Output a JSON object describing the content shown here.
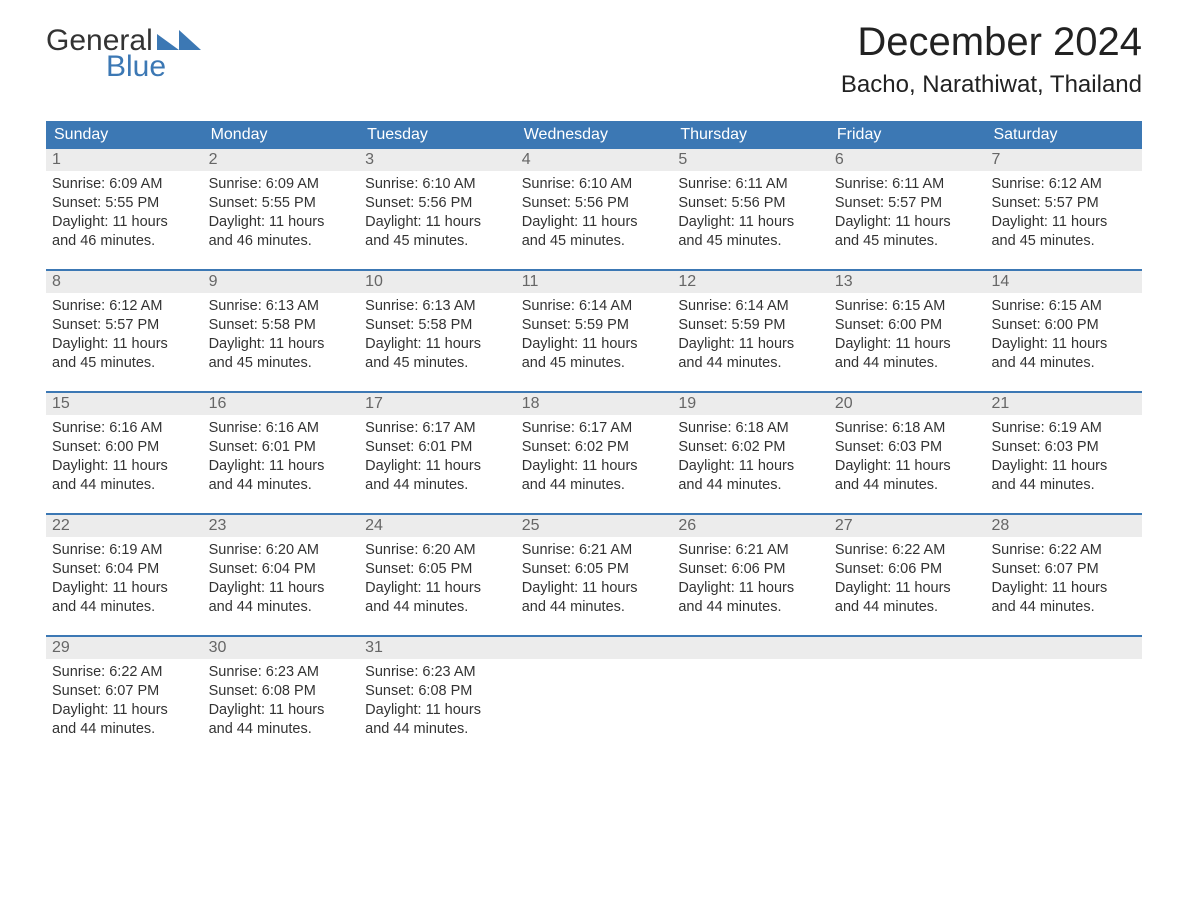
{
  "logo": {
    "word1": "General",
    "word2": "Blue",
    "accent_color": "#3c78b4",
    "text_color": "#333333"
  },
  "title": "December 2024",
  "location": "Bacho, Narathiwat, Thailand",
  "colors": {
    "header_bg": "#3c78b4",
    "header_text": "#ffffff",
    "daynum_bg": "#ececec",
    "daynum_text": "#666666",
    "week_border": "#3c78b4",
    "body_text": "#333333",
    "background": "#ffffff"
  },
  "fonts": {
    "title_size_pt": 30,
    "location_size_pt": 18,
    "header_size_pt": 12,
    "body_size_pt": 11
  },
  "day_headers": [
    "Sunday",
    "Monday",
    "Tuesday",
    "Wednesday",
    "Thursday",
    "Friday",
    "Saturday"
  ],
  "weeks": [
    [
      {
        "n": "1",
        "sunrise": "Sunrise: 6:09 AM",
        "sunset": "Sunset: 5:55 PM",
        "d1": "Daylight: 11 hours",
        "d2": "and 46 minutes."
      },
      {
        "n": "2",
        "sunrise": "Sunrise: 6:09 AM",
        "sunset": "Sunset: 5:55 PM",
        "d1": "Daylight: 11 hours",
        "d2": "and 46 minutes."
      },
      {
        "n": "3",
        "sunrise": "Sunrise: 6:10 AM",
        "sunset": "Sunset: 5:56 PM",
        "d1": "Daylight: 11 hours",
        "d2": "and 45 minutes."
      },
      {
        "n": "4",
        "sunrise": "Sunrise: 6:10 AM",
        "sunset": "Sunset: 5:56 PM",
        "d1": "Daylight: 11 hours",
        "d2": "and 45 minutes."
      },
      {
        "n": "5",
        "sunrise": "Sunrise: 6:11 AM",
        "sunset": "Sunset: 5:56 PM",
        "d1": "Daylight: 11 hours",
        "d2": "and 45 minutes."
      },
      {
        "n": "6",
        "sunrise": "Sunrise: 6:11 AM",
        "sunset": "Sunset: 5:57 PM",
        "d1": "Daylight: 11 hours",
        "d2": "and 45 minutes."
      },
      {
        "n": "7",
        "sunrise": "Sunrise: 6:12 AM",
        "sunset": "Sunset: 5:57 PM",
        "d1": "Daylight: 11 hours",
        "d2": "and 45 minutes."
      }
    ],
    [
      {
        "n": "8",
        "sunrise": "Sunrise: 6:12 AM",
        "sunset": "Sunset: 5:57 PM",
        "d1": "Daylight: 11 hours",
        "d2": "and 45 minutes."
      },
      {
        "n": "9",
        "sunrise": "Sunrise: 6:13 AM",
        "sunset": "Sunset: 5:58 PM",
        "d1": "Daylight: 11 hours",
        "d2": "and 45 minutes."
      },
      {
        "n": "10",
        "sunrise": "Sunrise: 6:13 AM",
        "sunset": "Sunset: 5:58 PM",
        "d1": "Daylight: 11 hours",
        "d2": "and 45 minutes."
      },
      {
        "n": "11",
        "sunrise": "Sunrise: 6:14 AM",
        "sunset": "Sunset: 5:59 PM",
        "d1": "Daylight: 11 hours",
        "d2": "and 45 minutes."
      },
      {
        "n": "12",
        "sunrise": "Sunrise: 6:14 AM",
        "sunset": "Sunset: 5:59 PM",
        "d1": "Daylight: 11 hours",
        "d2": "and 44 minutes."
      },
      {
        "n": "13",
        "sunrise": "Sunrise: 6:15 AM",
        "sunset": "Sunset: 6:00 PM",
        "d1": "Daylight: 11 hours",
        "d2": "and 44 minutes."
      },
      {
        "n": "14",
        "sunrise": "Sunrise: 6:15 AM",
        "sunset": "Sunset: 6:00 PM",
        "d1": "Daylight: 11 hours",
        "d2": "and 44 minutes."
      }
    ],
    [
      {
        "n": "15",
        "sunrise": "Sunrise: 6:16 AM",
        "sunset": "Sunset: 6:00 PM",
        "d1": "Daylight: 11 hours",
        "d2": "and 44 minutes."
      },
      {
        "n": "16",
        "sunrise": "Sunrise: 6:16 AM",
        "sunset": "Sunset: 6:01 PM",
        "d1": "Daylight: 11 hours",
        "d2": "and 44 minutes."
      },
      {
        "n": "17",
        "sunrise": "Sunrise: 6:17 AM",
        "sunset": "Sunset: 6:01 PM",
        "d1": "Daylight: 11 hours",
        "d2": "and 44 minutes."
      },
      {
        "n": "18",
        "sunrise": "Sunrise: 6:17 AM",
        "sunset": "Sunset: 6:02 PM",
        "d1": "Daylight: 11 hours",
        "d2": "and 44 minutes."
      },
      {
        "n": "19",
        "sunrise": "Sunrise: 6:18 AM",
        "sunset": "Sunset: 6:02 PM",
        "d1": "Daylight: 11 hours",
        "d2": "and 44 minutes."
      },
      {
        "n": "20",
        "sunrise": "Sunrise: 6:18 AM",
        "sunset": "Sunset: 6:03 PM",
        "d1": "Daylight: 11 hours",
        "d2": "and 44 minutes."
      },
      {
        "n": "21",
        "sunrise": "Sunrise: 6:19 AM",
        "sunset": "Sunset: 6:03 PM",
        "d1": "Daylight: 11 hours",
        "d2": "and 44 minutes."
      }
    ],
    [
      {
        "n": "22",
        "sunrise": "Sunrise: 6:19 AM",
        "sunset": "Sunset: 6:04 PM",
        "d1": "Daylight: 11 hours",
        "d2": "and 44 minutes."
      },
      {
        "n": "23",
        "sunrise": "Sunrise: 6:20 AM",
        "sunset": "Sunset: 6:04 PM",
        "d1": "Daylight: 11 hours",
        "d2": "and 44 minutes."
      },
      {
        "n": "24",
        "sunrise": "Sunrise: 6:20 AM",
        "sunset": "Sunset: 6:05 PM",
        "d1": "Daylight: 11 hours",
        "d2": "and 44 minutes."
      },
      {
        "n": "25",
        "sunrise": "Sunrise: 6:21 AM",
        "sunset": "Sunset: 6:05 PM",
        "d1": "Daylight: 11 hours",
        "d2": "and 44 minutes."
      },
      {
        "n": "26",
        "sunrise": "Sunrise: 6:21 AM",
        "sunset": "Sunset: 6:06 PM",
        "d1": "Daylight: 11 hours",
        "d2": "and 44 minutes."
      },
      {
        "n": "27",
        "sunrise": "Sunrise: 6:22 AM",
        "sunset": "Sunset: 6:06 PM",
        "d1": "Daylight: 11 hours",
        "d2": "and 44 minutes."
      },
      {
        "n": "28",
        "sunrise": "Sunrise: 6:22 AM",
        "sunset": "Sunset: 6:07 PM",
        "d1": "Daylight: 11 hours",
        "d2": "and 44 minutes."
      }
    ],
    [
      {
        "n": "29",
        "sunrise": "Sunrise: 6:22 AM",
        "sunset": "Sunset: 6:07 PM",
        "d1": "Daylight: 11 hours",
        "d2": "and 44 minutes."
      },
      {
        "n": "30",
        "sunrise": "Sunrise: 6:23 AM",
        "sunset": "Sunset: 6:08 PM",
        "d1": "Daylight: 11 hours",
        "d2": "and 44 minutes."
      },
      {
        "n": "31",
        "sunrise": "Sunrise: 6:23 AM",
        "sunset": "Sunset: 6:08 PM",
        "d1": "Daylight: 11 hours",
        "d2": "and 44 minutes."
      },
      {
        "n": "",
        "sunrise": "",
        "sunset": "",
        "d1": "",
        "d2": ""
      },
      {
        "n": "",
        "sunrise": "",
        "sunset": "",
        "d1": "",
        "d2": ""
      },
      {
        "n": "",
        "sunrise": "",
        "sunset": "",
        "d1": "",
        "d2": ""
      },
      {
        "n": "",
        "sunrise": "",
        "sunset": "",
        "d1": "",
        "d2": ""
      }
    ]
  ]
}
